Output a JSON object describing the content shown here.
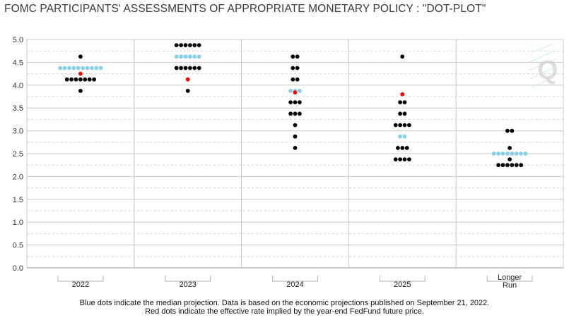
{
  "title": "FOMC PARTICIPANTS' ASSESSMENTS OF APPROPRIATE MONETARY POLICY : \"DOT-PLOT\"",
  "footnote": {
    "line1": "Blue dots indicate the median projection. Data is based on the economic projections published on September 21, 2022.",
    "line2": "Red dots indicate the effective rate implied by the year-end FedFund future price."
  },
  "watermark": "Q",
  "colors": {
    "participant": "#000000",
    "median": "#87ceeb",
    "market": "#ff0000",
    "grid": "#c8c8c8"
  },
  "chart_data": {
    "type": "scatter",
    "title": "FOMC PARTICIPANTS' ASSESSMENTS OF APPROPRIATE MONETARY POLICY : \"DOT-PLOT\"",
    "xlabel": "",
    "ylabel": "",
    "ylim": [
      0,
      5.0
    ],
    "yticks": [
      0.0,
      0.5,
      1.0,
      1.5,
      2.0,
      2.5,
      3.0,
      3.5,
      4.0,
      4.5,
      5.0
    ],
    "ytick_labels": [
      "0.0",
      "0.5",
      "1.0",
      "1.5",
      "2.0",
      "2.5",
      "3.0",
      "3.5",
      "4.0",
      "4.5",
      "5.0"
    ],
    "grid": true,
    "categories": [
      {
        "label": [
          "2022"
        ],
        "dots": [
          {
            "y": 4.625,
            "n": 1
          },
          {
            "y": 4.375,
            "n": 10,
            "median": true
          },
          {
            "y": 4.125,
            "n": 7
          },
          {
            "y": 3.875,
            "n": 1
          }
        ],
        "market": 4.25
      },
      {
        "label": [
          "2023"
        ],
        "dots": [
          {
            "y": 4.875,
            "n": 6
          },
          {
            "y": 4.625,
            "n": 6,
            "median": true
          },
          {
            "y": 4.375,
            "n": 6
          },
          {
            "y": 3.875,
            "n": 1
          }
        ],
        "market": 4.125
      },
      {
        "label": [
          "2024"
        ],
        "dots": [
          {
            "y": 4.625,
            "n": 2
          },
          {
            "y": 4.375,
            "n": 2
          },
          {
            "y": 4.125,
            "n": 2
          },
          {
            "y": 3.875,
            "n": 3,
            "median": true
          },
          {
            "y": 3.625,
            "n": 3
          },
          {
            "y": 3.375,
            "n": 3
          },
          {
            "y": 3.125,
            "n": 1
          },
          {
            "y": 2.875,
            "n": 1
          },
          {
            "y": 2.625,
            "n": 1
          }
        ],
        "market": 3.84
      },
      {
        "label": [
          "2025"
        ],
        "dots": [
          {
            "y": 4.625,
            "n": 1
          },
          {
            "y": 3.625,
            "n": 2
          },
          {
            "y": 3.375,
            "n": 2
          },
          {
            "y": 3.125,
            "n": 4
          },
          {
            "y": 2.875,
            "n": 2,
            "median": true
          },
          {
            "y": 2.625,
            "n": 3
          },
          {
            "y": 2.375,
            "n": 4
          }
        ],
        "market": 3.8
      },
      {
        "label": [
          "Longer",
          "Run"
        ],
        "dots": [
          {
            "y": 3.0,
            "n": 2
          },
          {
            "y": 2.625,
            "n": 1
          },
          {
            "y": 2.5,
            "n": 8,
            "median": true
          },
          {
            "y": 2.375,
            "n": 1
          },
          {
            "y": 2.25,
            "n": 6
          }
        ],
        "market": null
      }
    ],
    "series": [
      {
        "name": "Blue dots indicate the median projection."
      },
      {
        "name": "Red dots indicate the effective rate implied by the year-end FedFund future price."
      }
    ]
  }
}
